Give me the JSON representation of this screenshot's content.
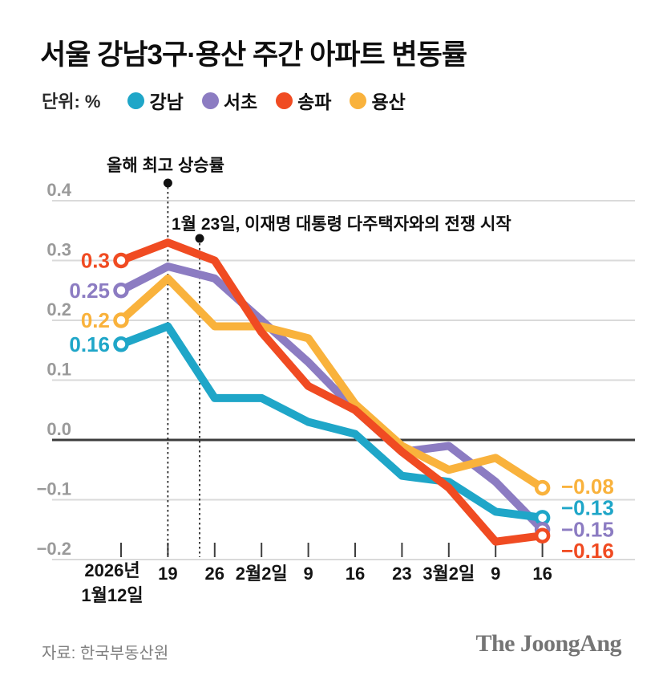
{
  "header": {
    "title": "서울 강남3구·용산 주간 아파트 변동률",
    "unit_label": "단위: %"
  },
  "annotations": {
    "peak": "올해 최고 상승률",
    "event": "1월 23일, 이재명 대통령 다주택자와의 전쟁 시작"
  },
  "footer": {
    "source": "자료: 한국부동산원",
    "logo": "The JoongAng"
  },
  "chart_data": {
    "type": "line",
    "title": "서울 강남3구·용산 주간 아파트 변동률",
    "unit": "%",
    "x_labels": [
      "2026년 1월12일",
      "19",
      "26",
      "2월2일",
      "9",
      "16",
      "23",
      "3월2일",
      "9",
      "16"
    ],
    "y_ticks": [
      0.4,
      0.3,
      0.2,
      0.1,
      0.0,
      -0.1,
      -0.2
    ],
    "ylim": [
      -0.2,
      0.4
    ],
    "grid": true,
    "legend_position": "top",
    "series": [
      {
        "key": "gangnam",
        "name": "강남",
        "color": "#1FA6C8",
        "values": [
          0.16,
          0.19,
          0.07,
          0.07,
          0.03,
          0.01,
          -0.06,
          -0.07,
          -0.12,
          -0.13
        ],
        "start_label": "0.16",
        "end_label": "−0.13"
      },
      {
        "key": "seocho",
        "name": "서초",
        "color": "#8C7CC2",
        "values": [
          0.25,
          0.29,
          0.27,
          0.2,
          0.13,
          0.05,
          -0.02,
          -0.01,
          -0.07,
          -0.15
        ],
        "start_label": "0.25",
        "end_label": "−0.15"
      },
      {
        "key": "songpa",
        "name": "송파",
        "color": "#F04B22",
        "values": [
          0.3,
          0.33,
          0.3,
          0.18,
          0.09,
          0.05,
          -0.02,
          -0.08,
          -0.17,
          -0.16
        ],
        "start_label": "0.3",
        "end_label": "−0.16"
      },
      {
        "key": "yongsan",
        "name": "용산",
        "color": "#F9B23C",
        "values": [
          0.2,
          0.27,
          0.19,
          0.19,
          0.17,
          0.06,
          -0.01,
          -0.05,
          -0.03,
          -0.08
        ],
        "start_label": "0.2",
        "end_label": "−0.08"
      }
    ],
    "event_annotations": [
      {
        "text": "올해 최고 상승률",
        "week_index": 1
      },
      {
        "text": "1월 23일, 이재명 대통령 다주택자와의 전쟁 시작",
        "date_between_weeks": [
          1,
          2
        ]
      }
    ]
  }
}
